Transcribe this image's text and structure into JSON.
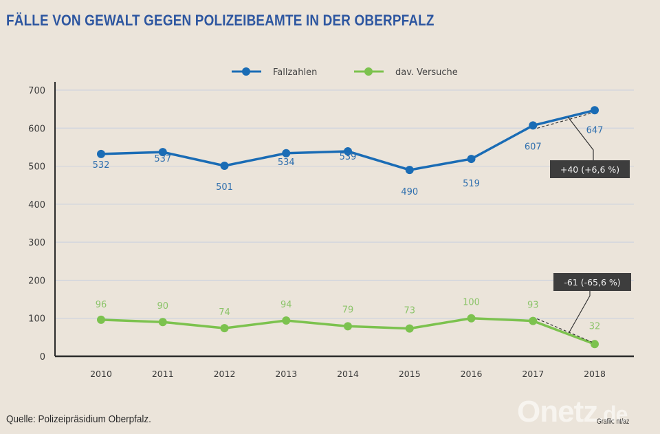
{
  "header": {
    "title": "FÄLLE VON GEWALT GEGEN POLIZEIBEAMTE IN DER OBERPFALZ"
  },
  "footer": {
    "source": "Quelle: Polizeipräsidium Oberpfalz.",
    "logo_main": "Onetz",
    "logo_tld": ".de",
    "credit": "Grafik: nt/az"
  },
  "colors": {
    "background": "#ebe4da",
    "title": "#2d56a0",
    "series_fallzahlen": "#1a6cb5",
    "series_versuche": "#7cc24e",
    "annotation_box": "#3d3d3d"
  },
  "chart_data": {
    "type": "line",
    "title": "FÄLLE VON GEWALT GEGEN POLIZEIBEAMTE IN DER OBERPFALZ",
    "xlabel": "",
    "ylabel": "",
    "x": [
      "2010",
      "2011",
      "2012",
      "2013",
      "2014",
      "2015",
      "2016",
      "2017",
      "2018"
    ],
    "ylim": [
      0,
      700
    ],
    "yticks": [
      0,
      100,
      200,
      300,
      400,
      500,
      600,
      700
    ],
    "grid": true,
    "legend": "top-center",
    "series": [
      {
        "name": "Fallzahlen",
        "color": "#1a6cb5",
        "values": [
          532,
          537,
          501,
          534,
          539,
          490,
          519,
          607,
          647
        ],
        "labels": [
          "532",
          "537",
          "501",
          "534",
          "539",
          "490",
          "519",
          "607",
          "647"
        ]
      },
      {
        "name": "dav. Versuche",
        "color": "#7cc24e",
        "values": [
          96,
          90,
          74,
          94,
          79,
          73,
          100,
          93,
          32
        ],
        "labels": [
          "96",
          "90",
          "74",
          "94",
          "79",
          "73",
          "100",
          "93",
          "32"
        ]
      }
    ],
    "annotations": [
      {
        "series": "Fallzahlen",
        "from": "2017",
        "to": "2018",
        "text": "+40  (+6,6 %)"
      },
      {
        "series": "dav. Versuche",
        "from": "2017",
        "to": "2018",
        "text": "-61  (-65,6 %)"
      }
    ]
  }
}
